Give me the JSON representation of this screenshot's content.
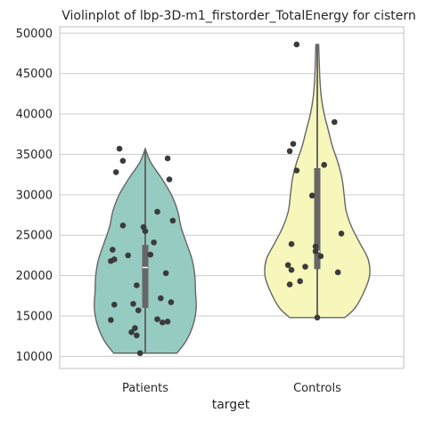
{
  "chart_data": {
    "type": "violin",
    "title": "Violinplot of lbp-3D-m1_firstorder_TotalEnergy for cistern",
    "xlabel": "target",
    "ylabel": "",
    "ylim": [
      8500,
      50800
    ],
    "yticks": [
      10000,
      15000,
      20000,
      25000,
      30000,
      35000,
      40000,
      45000,
      50000
    ],
    "ytick_labels": [
      "10000",
      "15000",
      "20000",
      "25000",
      "30000",
      "35000",
      "40000",
      "45000",
      "50000"
    ],
    "grid": true,
    "categories": [
      "Patients",
      "Controls"
    ],
    "series": [
      {
        "category": "Patients",
        "color": "#96cbc1",
        "min": 10400,
        "max": 35700,
        "q1": 16000,
        "median": 21000,
        "q3": 23800,
        "density": [
          [
            10400,
            0.46
          ],
          [
            12000,
            0.6
          ],
          [
            14000,
            0.7
          ],
          [
            16000,
            0.74
          ],
          [
            18000,
            0.73
          ],
          [
            20000,
            0.72
          ],
          [
            22000,
            0.68
          ],
          [
            24000,
            0.6
          ],
          [
            26000,
            0.52
          ],
          [
            28000,
            0.47
          ],
          [
            30000,
            0.38
          ],
          [
            32000,
            0.24
          ],
          [
            34000,
            0.08
          ],
          [
            35700,
            0.0
          ]
        ],
        "points": [
          [
            10400,
            -0.03
          ],
          [
            12600,
            -0.05
          ],
          [
            13000,
            -0.08
          ],
          [
            13500,
            -0.06
          ],
          [
            14200,
            0.1
          ],
          [
            14600,
            0.07
          ],
          [
            14500,
            -0.2
          ],
          [
            14300,
            0.13
          ],
          [
            15700,
            -0.04
          ],
          [
            16400,
            -0.18
          ],
          [
            16700,
            0.15
          ],
          [
            16500,
            -0.07
          ],
          [
            17200,
            0.09
          ],
          [
            18800,
            -0.05
          ],
          [
            20300,
            0.12
          ],
          [
            21800,
            -0.2
          ],
          [
            22000,
            -0.18
          ],
          [
            22500,
            -0.1
          ],
          [
            22600,
            0.03
          ],
          [
            23200,
            -0.19
          ],
          [
            24100,
            0.05
          ],
          [
            25500,
            0.0
          ],
          [
            26000,
            -0.01
          ],
          [
            26200,
            -0.13
          ],
          [
            26800,
            0.16
          ],
          [
            27900,
            0.07
          ],
          [
            31900,
            0.14
          ],
          [
            32800,
            -0.17
          ],
          [
            34200,
            -0.13
          ],
          [
            34500,
            0.13
          ],
          [
            35700,
            -0.15
          ]
        ]
      },
      {
        "category": "Controls",
        "color": "#f7f6bb",
        "min": 14800,
        "max": 48600,
        "q1": 20800,
        "median": 23000,
        "q3": 33300,
        "density": [
          [
            14800,
            0.4
          ],
          [
            16000,
            0.55
          ],
          [
            18000,
            0.68
          ],
          [
            20000,
            0.76
          ],
          [
            22000,
            0.74
          ],
          [
            24000,
            0.62
          ],
          [
            26000,
            0.5
          ],
          [
            28000,
            0.42
          ],
          [
            30000,
            0.39
          ],
          [
            32000,
            0.36
          ],
          [
            34000,
            0.3
          ],
          [
            36000,
            0.22
          ],
          [
            38000,
            0.16
          ],
          [
            40000,
            0.1
          ],
          [
            42000,
            0.06
          ],
          [
            44000,
            0.04
          ],
          [
            46000,
            0.03
          ],
          [
            48600,
            0.02
          ]
        ],
        "points": [
          [
            14800,
            0.0
          ],
          [
            18900,
            -0.16
          ],
          [
            19300,
            -0.1
          ],
          [
            20400,
            0.12
          ],
          [
            20700,
            -0.15
          ],
          [
            21100,
            -0.07
          ],
          [
            21300,
            -0.17
          ],
          [
            22400,
            0.02
          ],
          [
            23000,
            -0.01
          ],
          [
            23600,
            -0.01
          ],
          [
            23900,
            -0.15
          ],
          [
            25200,
            0.14
          ],
          [
            29900,
            -0.03
          ],
          [
            33000,
            -0.12
          ],
          [
            33700,
            0.04
          ],
          [
            35400,
            -0.16
          ],
          [
            36300,
            -0.14
          ],
          [
            39000,
            0.1
          ],
          [
            48600,
            -0.12
          ]
        ]
      }
    ]
  }
}
